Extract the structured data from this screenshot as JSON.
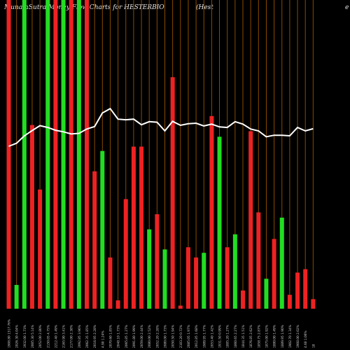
{
  "header": {
    "source": "MunafaSutra",
    "chart_desc": "Money Flow Charts for HESTERBIO",
    "company": "(Hest",
    "tail": "e"
  },
  "colors": {
    "background": "#000000",
    "up": "#22dd22",
    "down": "#ee2222",
    "grid": "#8a4b00",
    "line": "#ffffff",
    "label": "#cfcfcf"
  },
  "chart_data": {
    "type": "bar",
    "bars": [
      {
        "color": "down",
        "value": 100
      },
      {
        "color": "up",
        "value": 7.7
      },
      {
        "color": "up",
        "value": 100
      },
      {
        "color": "down",
        "value": 59.5
      },
      {
        "color": "down",
        "value": 38.6
      },
      {
        "color": "up",
        "value": 100
      },
      {
        "color": "down",
        "value": 100
      },
      {
        "color": "up",
        "value": 100
      },
      {
        "color": "down",
        "value": 100
      },
      {
        "color": "up",
        "value": 100
      },
      {
        "color": "down",
        "value": 100
      },
      {
        "color": "down",
        "value": 44.5
      },
      {
        "color": "up",
        "value": 51.1
      },
      {
        "color": "down",
        "value": 16.6
      },
      {
        "color": "down",
        "value": 2.7
      },
      {
        "color": "down",
        "value": 35.5
      },
      {
        "color": "down",
        "value": 52.5
      },
      {
        "color": "down",
        "value": 52.5
      },
      {
        "color": "up",
        "value": 25.7
      },
      {
        "color": "down",
        "value": 30.6
      },
      {
        "color": "up",
        "value": 19.2
      },
      {
        "color": "down",
        "value": 75.0
      },
      {
        "color": "down",
        "value": 1.0
      },
      {
        "color": "down",
        "value": 19.9
      },
      {
        "color": "down",
        "value": 16.6
      },
      {
        "color": "up",
        "value": 18.1
      },
      {
        "color": "down",
        "value": 62.4
      },
      {
        "color": "up",
        "value": 55.7
      },
      {
        "color": "down",
        "value": 19.9
      },
      {
        "color": "up",
        "value": 24.1
      },
      {
        "color": "down",
        "value": 5.9
      },
      {
        "color": "down",
        "value": 57.5
      },
      {
        "color": "down",
        "value": 31.2
      },
      {
        "color": "up",
        "value": 9.7
      },
      {
        "color": "down",
        "value": 22.6
      },
      {
        "color": "up",
        "value": 29.5
      },
      {
        "color": "down",
        "value": 4.5
      },
      {
        "color": "down",
        "value": 11.7
      },
      {
        "color": "down",
        "value": 12.8
      },
      {
        "color": "down",
        "value": 3.1
      }
    ],
    "line": [
      52.6,
      53.6,
      56.0,
      57.7,
      59.3,
      58.7,
      57.8,
      57.3,
      56.6,
      56.8,
      58.2,
      59.0,
      63.4,
      64.8,
      61.4,
      61.2,
      61.4,
      59.6,
      60.6,
      60.4,
      57.6,
      60.7,
      59.4,
      59.9,
      60.1,
      59.2,
      59.8,
      58.9,
      58.7,
      60.6,
      59.8,
      58.2,
      57.6,
      55.7,
      56.2,
      56.2,
      56.0,
      58.7,
      57.6,
      58.3
    ],
    "x_labels": [
      "1908.80 1317.76%",
      "2026.30 4.04%",
      "1932.00 1.73%",
      "2005.30 5.14%",
      "2052.00 2.80%",
      "2150.05 4.75%",
      "2212.40 1.49%",
      "2165.90 3.41%",
      "2177.00 2.38%",
      "2092.85 3.96%",
      "2062.35 1.85%",
      "2016.95 2.28%",
      "4.90 1.24%",
      "2070.60 1.85%",
      "2048.10 1.73%",
      "2065.85 1.27%",
      "2091.80 1.99%",
      "2059.00 2.44%",
      "2080.00 2.52%",
      "2052.20 2.28%",
      "2080.00 1.73%",
      "2050.50 1.94%",
      "2103.20 0.72%",
      "2085.05 1.97%",
      "2012.85 1.68%",
      "1989.95 1.77%",
      "2053.40 1.42%",
      "1931.50 0.99%",
      "1885.20 1.27%",
      "1860.65 2.27%",
      "1844.35 1.51%",
      "1876.85 2.62%",
      "1858.75 2.87%",
      "1875.00 1.92%",
      "1880.00 1.49%",
      "1889.95 1.90%",
      "1902.70 1.34%",
      "1908.00 2.02%",
      "4.60 1.06%",
      "18"
    ]
  }
}
